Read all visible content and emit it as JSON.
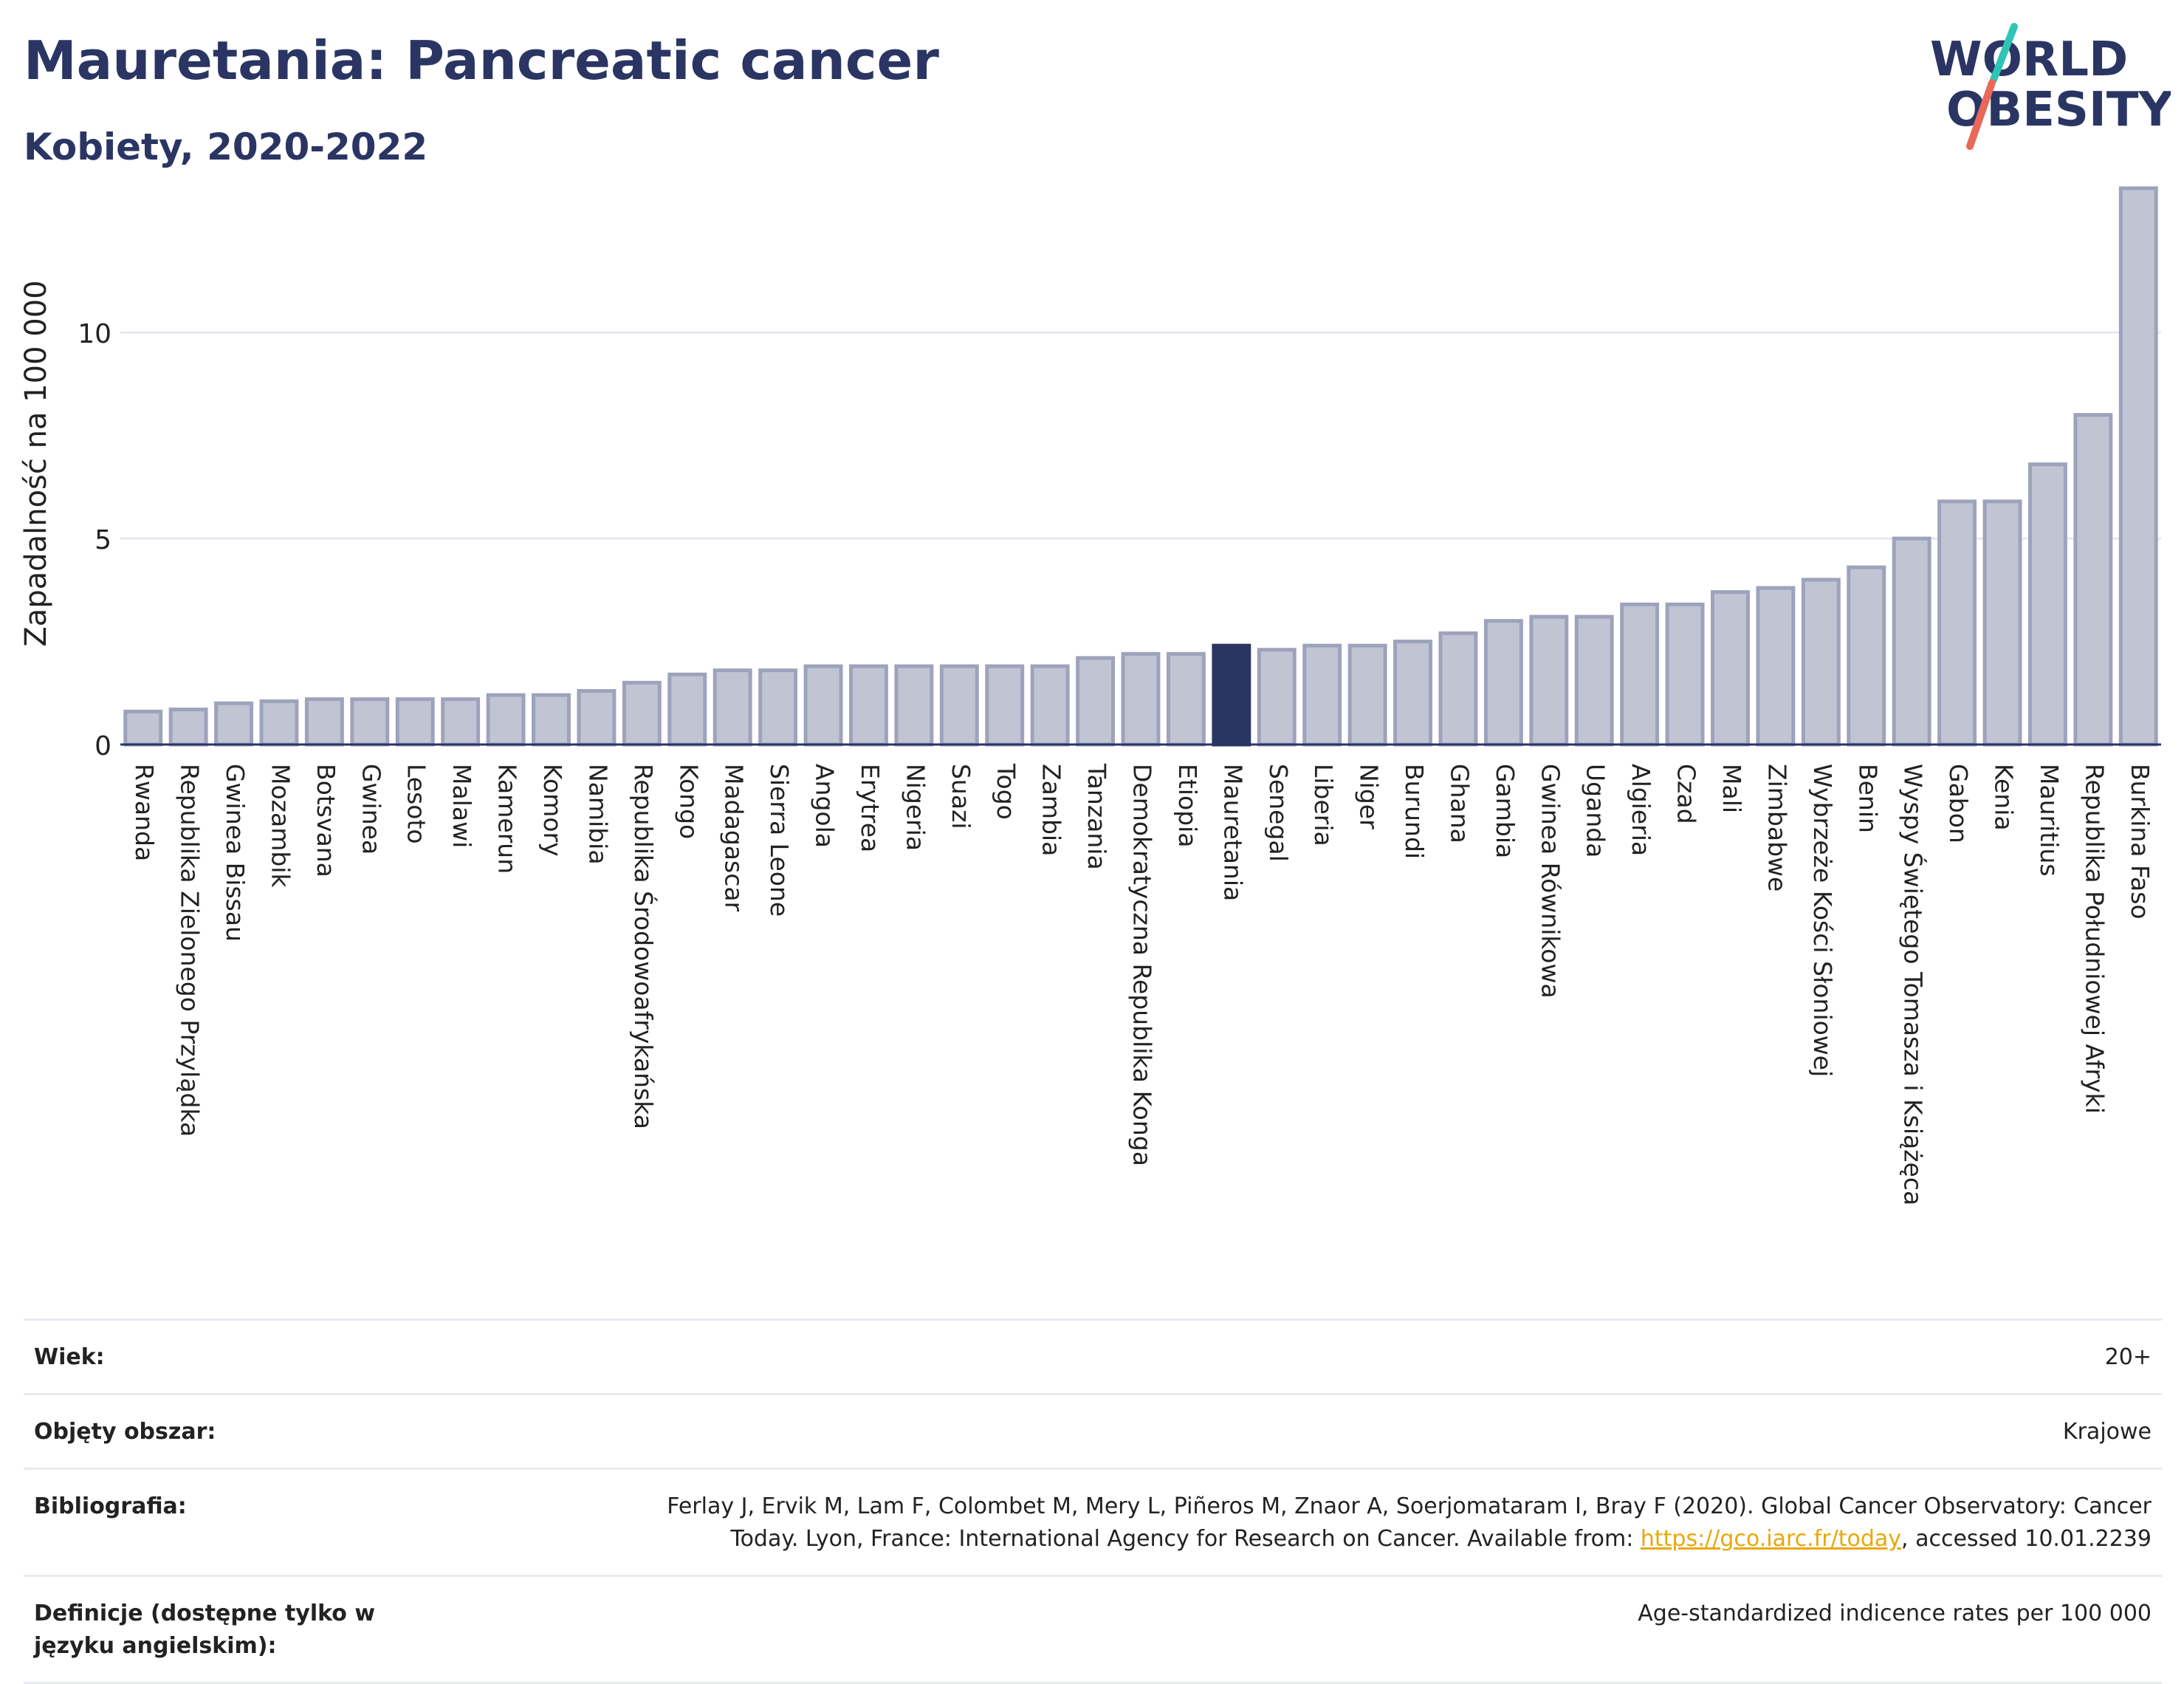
{
  "header": {
    "title": "Mauretania: Pancreatic cancer",
    "subtitle": "Kobiety, 2020-2022"
  },
  "logo": {
    "line1": "WORLD",
    "line2": "OBESITY",
    "colors": {
      "text": "#2a3563",
      "slash_teal": "#2ec4b6",
      "slash_red": "#e8685a"
    }
  },
  "chart_data": {
    "type": "bar",
    "title": "Mauretania: Pancreatic cancer",
    "subtitle": "Kobiety, 2020-2022",
    "ylabel": "Zapadalność na 100 000",
    "xlabel": "",
    "ylim": [
      0,
      14
    ],
    "yticks": [
      0,
      5,
      10
    ],
    "grid": true,
    "highlight": "Mauretania",
    "colors": {
      "bar": "#c0c4d3",
      "bar_edge": "#9ea3bc",
      "highlight": "#2a3563"
    },
    "categories": [
      "Rwanda",
      "Republika Zielonego Przylądka",
      "Gwinea Bissau",
      "Mozambik",
      "Botsvana",
      "Gwinea",
      "Lesoto",
      "Malawi",
      "Kamerun",
      "Komory",
      "Namibia",
      "Republika Środowoafrykańska",
      "Kongo",
      "Madagascar",
      "Sierra Leone",
      "Angola",
      "Erytrea",
      "Nigeria",
      "Suazi",
      "Togo",
      "Zambia",
      "Tanzania",
      "Demokratyczna Republika Konga",
      "Etiopia",
      "Mauretania",
      "Senegal",
      "Liberia",
      "Niger",
      "Burundi",
      "Ghana",
      "Gambia",
      "Gwinea Równikowa",
      "Uganda",
      "Algieria",
      "Czad",
      "Mali",
      "Zimbabwe",
      "Wybrzeże Kości Słoniowej",
      "Benin",
      "Wyspy Świętego Tomasza i Książęca",
      "Gabon",
      "Kenia",
      "Mauritius",
      "Republika Południowej Afryki",
      "Burkina Faso"
    ],
    "values": [
      0.8,
      0.85,
      1.0,
      1.05,
      1.1,
      1.1,
      1.1,
      1.1,
      1.2,
      1.2,
      1.3,
      1.5,
      1.7,
      1.8,
      1.8,
      1.9,
      1.9,
      1.9,
      1.9,
      1.9,
      1.9,
      2.1,
      2.2,
      2.2,
      2.4,
      2.3,
      2.4,
      2.4,
      2.5,
      2.7,
      3.0,
      3.1,
      3.1,
      3.4,
      3.4,
      3.7,
      3.8,
      4.0,
      4.3,
      5.0,
      5.9,
      5.9,
      6.8,
      8.0,
      13.5
    ]
  },
  "info": {
    "age_label": "Wiek:",
    "age_value": "20+",
    "coverage_label": "Objęty obszar:",
    "coverage_value": "Krajowe",
    "bibliography_label": "Bibliografia:",
    "bibliography_line1": "Ferlay J, Ervik M, Lam F, Colombet M, Mery L, Piñeros M, Znaor A, Soerjomataram I, Bray F (2020). Global Cancer Observatory: Cancer",
    "bibliography_line2_pre": "Today. Lyon, France: International Agency for Research on Cancer. Available from: ",
    "bibliography_link": "https://gco.iarc.fr/today",
    "bibliography_line2_post": ", accessed 10.01.2239",
    "definitions_label": "Definicje (dostępne tylko w języku angielskim):",
    "definitions_value": "Age-standardized indicence rates per 100 000"
  }
}
